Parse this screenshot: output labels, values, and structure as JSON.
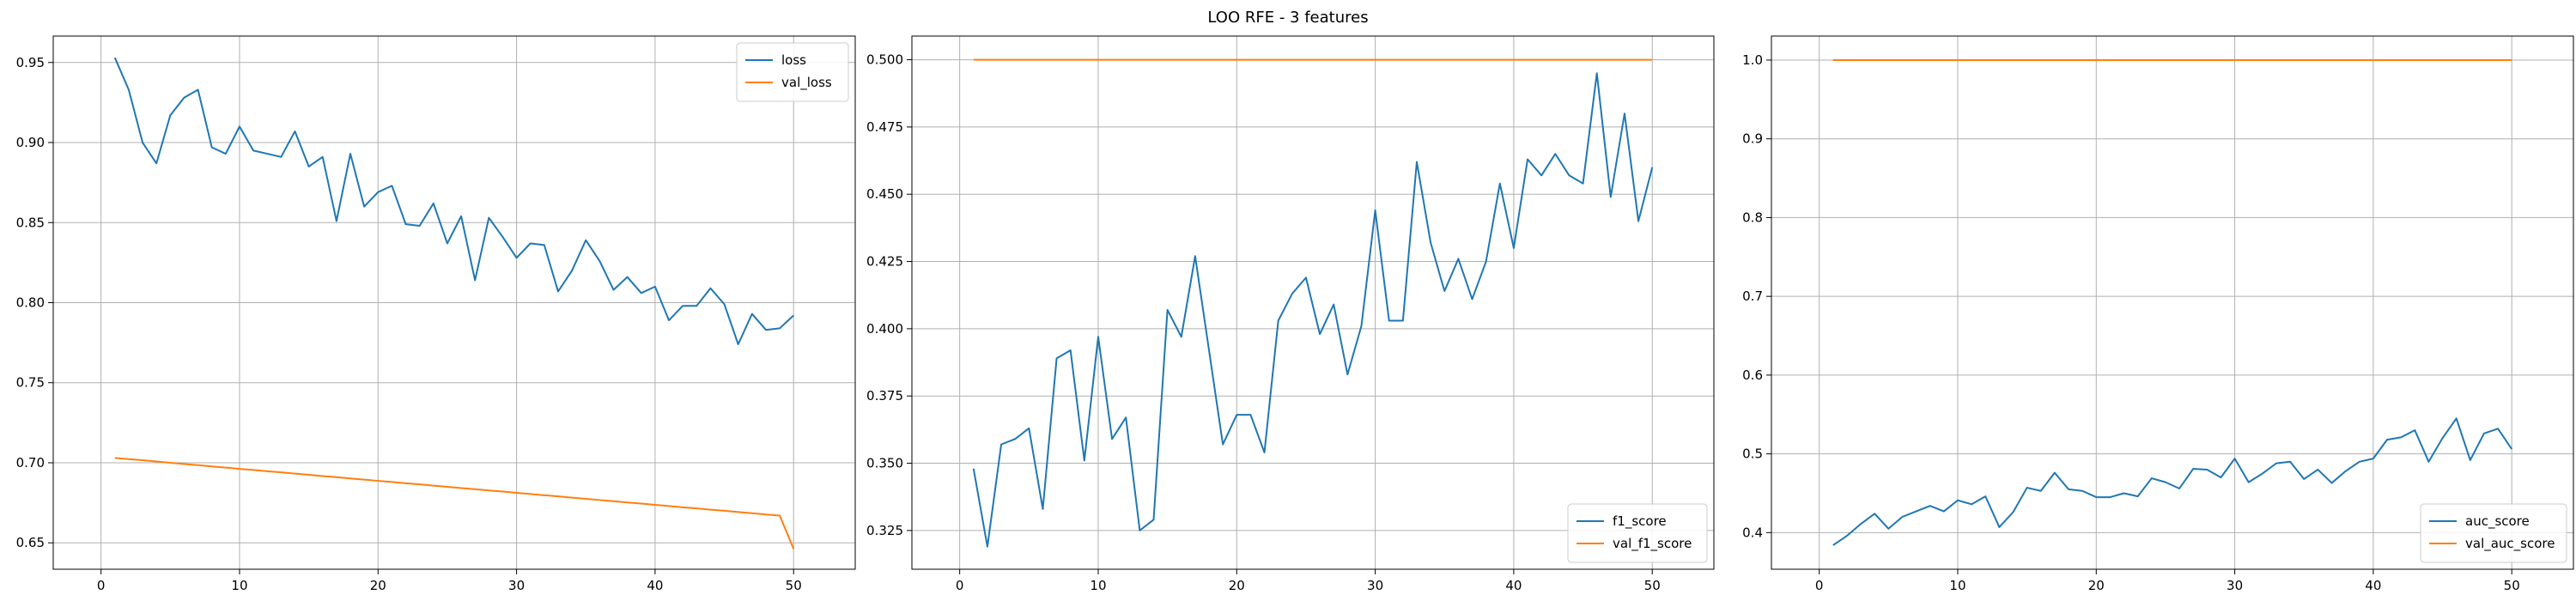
{
  "figure": {
    "title": "LOO RFE - 3 features"
  },
  "colors": {
    "series1": "#1f77b4",
    "series2": "#ff7f0e",
    "grid": "#b0b0b0",
    "axis": "#000000"
  },
  "chart_data": [
    {
      "type": "line",
      "title": "",
      "xlabel": "",
      "ylabel": "",
      "xlim": [
        -3.45,
        54.45
      ],
      "ylim": [
        0.6335,
        0.9665
      ],
      "xticks": [
        0,
        10,
        20,
        30,
        40,
        50
      ],
      "yticks": [
        0.65,
        0.7,
        0.75,
        0.8,
        0.85,
        0.9,
        0.95
      ],
      "tick_decimals": 2,
      "grid": true,
      "legend_position": "upper-right",
      "x": [
        1,
        2,
        3,
        4,
        5,
        6,
        7,
        8,
        9,
        10,
        11,
        12,
        13,
        14,
        15,
        16,
        17,
        18,
        19,
        20,
        21,
        22,
        23,
        24,
        25,
        26,
        27,
        28,
        29,
        30,
        31,
        32,
        33,
        34,
        35,
        36,
        37,
        38,
        39,
        40,
        41,
        42,
        43,
        44,
        45,
        46,
        47,
        48,
        49,
        50
      ],
      "series": [
        {
          "name": "loss",
          "color": "#1f77b4",
          "values": [
            0.953,
            0.933,
            0.9,
            0.887,
            0.917,
            0.928,
            0.933,
            0.897,
            0.893,
            0.91,
            0.895,
            0.893,
            0.891,
            0.907,
            0.885,
            0.891,
            0.851,
            0.893,
            0.86,
            0.869,
            0.873,
            0.849,
            0.848,
            0.862,
            0.837,
            0.854,
            0.814,
            0.853,
            0.841,
            0.828,
            0.837,
            0.836,
            0.807,
            0.82,
            0.839,
            0.826,
            0.808,
            0.816,
            0.806,
            0.81,
            0.789,
            0.798,
            0.798,
            0.809,
            0.799,
            0.774,
            0.793,
            0.783,
            0.784,
            0.792
          ]
        },
        {
          "name": "val_loss",
          "color": "#ff7f0e",
          "values": [
            0.703,
            0.7023,
            0.7016,
            0.7008,
            0.7,
            0.6992,
            0.6985,
            0.6977,
            0.697,
            0.6962,
            0.6955,
            0.6947,
            0.694,
            0.6932,
            0.6925,
            0.6917,
            0.691,
            0.6902,
            0.6895,
            0.6887,
            0.688,
            0.6872,
            0.6865,
            0.6857,
            0.685,
            0.6842,
            0.6835,
            0.6827,
            0.682,
            0.6812,
            0.6805,
            0.6797,
            0.679,
            0.6782,
            0.6775,
            0.6767,
            0.676,
            0.6752,
            0.6745,
            0.6737,
            0.673,
            0.6722,
            0.6715,
            0.6707,
            0.67,
            0.6692,
            0.6685,
            0.6677,
            0.667,
            0.6462
          ]
        }
      ]
    },
    {
      "type": "line",
      "title": "",
      "xlabel": "",
      "ylabel": "",
      "xlim": [
        -3.45,
        54.45
      ],
      "ylim": [
        0.3106,
        0.5088
      ],
      "xticks": [
        0,
        10,
        20,
        30,
        40,
        50
      ],
      "yticks": [
        0.325,
        0.35,
        0.375,
        0.4,
        0.425,
        0.45,
        0.475,
        0.5
      ],
      "tick_decimals": 3,
      "grid": true,
      "legend_position": "lower-right",
      "x": [
        1,
        2,
        3,
        4,
        5,
        6,
        7,
        8,
        9,
        10,
        11,
        12,
        13,
        14,
        15,
        16,
        17,
        18,
        19,
        20,
        21,
        22,
        23,
        24,
        25,
        26,
        27,
        28,
        29,
        30,
        31,
        32,
        33,
        34,
        35,
        36,
        37,
        38,
        39,
        40,
        41,
        42,
        43,
        44,
        45,
        46,
        47,
        48,
        49,
        50
      ],
      "series": [
        {
          "name": "f1_score",
          "color": "#1f77b4",
          "values": [
            0.348,
            0.319,
            0.357,
            0.359,
            0.363,
            0.333,
            0.389,
            0.392,
            0.351,
            0.397,
            0.359,
            0.367,
            0.325,
            0.329,
            0.407,
            0.397,
            0.427,
            0.392,
            0.357,
            0.368,
            0.368,
            0.354,
            0.403,
            0.413,
            0.419,
            0.398,
            0.409,
            0.383,
            0.401,
            0.444,
            0.403,
            0.403,
            0.462,
            0.432,
            0.414,
            0.426,
            0.411,
            0.425,
            0.454,
            0.43,
            0.463,
            0.457,
            0.465,
            0.457,
            0.454,
            0.495,
            0.449,
            0.48,
            0.44,
            0.46
          ]
        },
        {
          "name": "val_f1_score",
          "color": "#ff7f0e",
          "values": [
            0.5,
            0.5,
            0.5,
            0.5,
            0.5,
            0.5,
            0.5,
            0.5,
            0.5,
            0.5,
            0.5,
            0.5,
            0.5,
            0.5,
            0.5,
            0.5,
            0.5,
            0.5,
            0.5,
            0.5,
            0.5,
            0.5,
            0.5,
            0.5,
            0.5,
            0.5,
            0.5,
            0.5,
            0.5,
            0.5,
            0.5,
            0.5,
            0.5,
            0.5,
            0.5,
            0.5,
            0.5,
            0.5,
            0.5,
            0.5,
            0.5,
            0.5,
            0.5,
            0.5,
            0.5,
            0.5,
            0.5,
            0.5,
            0.5,
            0.5
          ]
        }
      ]
    },
    {
      "type": "line",
      "title": "",
      "xlabel": "",
      "ylabel": "",
      "xlim": [
        -3.45,
        54.45
      ],
      "ylim": [
        0.3535,
        1.0305
      ],
      "xticks": [
        0,
        10,
        20,
        30,
        40,
        50
      ],
      "yticks": [
        0.4,
        0.5,
        0.6,
        0.7,
        0.8,
        0.9,
        1.0
      ],
      "tick_decimals": 1,
      "grid": true,
      "legend_position": "lower-right",
      "x": [
        1,
        2,
        3,
        4,
        5,
        6,
        7,
        8,
        9,
        10,
        11,
        12,
        13,
        14,
        15,
        16,
        17,
        18,
        19,
        20,
        21,
        22,
        23,
        24,
        25,
        26,
        27,
        28,
        29,
        30,
        31,
        32,
        33,
        34,
        35,
        36,
        37,
        38,
        39,
        40,
        41,
        42,
        43,
        44,
        45,
        46,
        47,
        48,
        49,
        50
      ],
      "series": [
        {
          "name": "auc_score",
          "color": "#1f77b4",
          "values": [
            0.384,
            0.396,
            0.411,
            0.424,
            0.405,
            0.42,
            0.427,
            0.434,
            0.427,
            0.441,
            0.436,
            0.446,
            0.407,
            0.426,
            0.457,
            0.453,
            0.476,
            0.455,
            0.453,
            0.445,
            0.445,
            0.45,
            0.446,
            0.469,
            0.464,
            0.456,
            0.481,
            0.48,
            0.47,
            0.494,
            0.464,
            0.475,
            0.488,
            0.49,
            0.468,
            0.48,
            0.463,
            0.478,
            0.49,
            0.494,
            0.518,
            0.521,
            0.53,
            0.49,
            0.52,
            0.545,
            0.492,
            0.526,
            0.532,
            0.506
          ]
        },
        {
          "name": "val_auc_score",
          "color": "#ff7f0e",
          "values": [
            1.0,
            1.0,
            1.0,
            1.0,
            1.0,
            1.0,
            1.0,
            1.0,
            1.0,
            1.0,
            1.0,
            1.0,
            1.0,
            1.0,
            1.0,
            1.0,
            1.0,
            1.0,
            1.0,
            1.0,
            1.0,
            1.0,
            1.0,
            1.0,
            1.0,
            1.0,
            1.0,
            1.0,
            1.0,
            1.0,
            1.0,
            1.0,
            1.0,
            1.0,
            1.0,
            1.0,
            1.0,
            1.0,
            1.0,
            1.0,
            1.0,
            1.0,
            1.0,
            1.0,
            1.0,
            1.0,
            1.0,
            1.0,
            1.0,
            1.0
          ]
        }
      ]
    }
  ]
}
